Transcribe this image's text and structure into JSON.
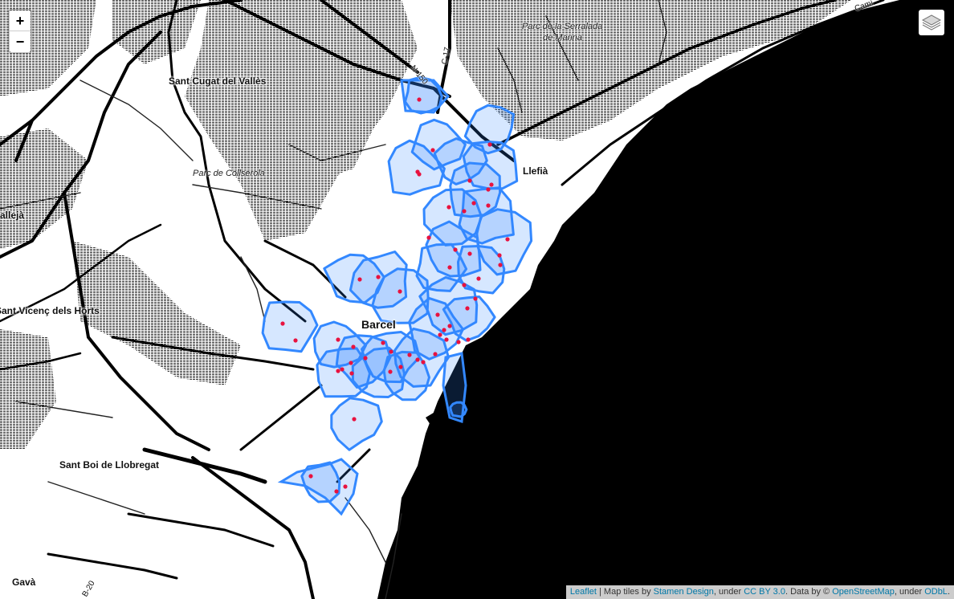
{
  "map": {
    "zoom_in_label": "+",
    "zoom_out_label": "−",
    "layers_icon": "layers-icon",
    "places": [
      {
        "id": "sant-cugat",
        "text": "Sant Cugat del Vallès"
      },
      {
        "id": "pallejà",
        "text": "Pallejà"
      },
      {
        "id": "sant-vicenc",
        "text": "Sant Vicenç dels Horts"
      },
      {
        "id": "sant-boi",
        "text": "Sant Boi de Llobregat"
      },
      {
        "id": "gava",
        "text": "Gavà"
      },
      {
        "id": "llefia",
        "text": "Llefià"
      },
      {
        "id": "barcelona",
        "text": "Barcel"
      }
    ],
    "parks": [
      {
        "id": "collserola",
        "text": "Parc de Collserola"
      },
      {
        "id": "serralada-1",
        "text": "Parc de la Serralada"
      },
      {
        "id": "serralada-2",
        "text": "de Marina"
      }
    ],
    "roads": [
      {
        "id": "n150",
        "text": "N-150"
      },
      {
        "id": "c17",
        "text": "C-17"
      },
      {
        "id": "b20",
        "text": "B-20"
      },
      {
        "id": "cami",
        "text": "Camí"
      }
    ],
    "colors": {
      "polygon": "#3388ff",
      "point": "#e8123f",
      "sea": "#000000"
    },
    "points_count": 60
  },
  "attribution": {
    "leaflet": "Leaflet",
    "sep1": " | Map tiles by ",
    "stamen": "Stamen Design",
    "sep2": ", under ",
    "ccby": "CC BY 3.0",
    "sep3": ". Data by © ",
    "osm": "OpenStreetMap",
    "sep4": ", under ",
    "odbl": "ODbL",
    "end": "."
  }
}
